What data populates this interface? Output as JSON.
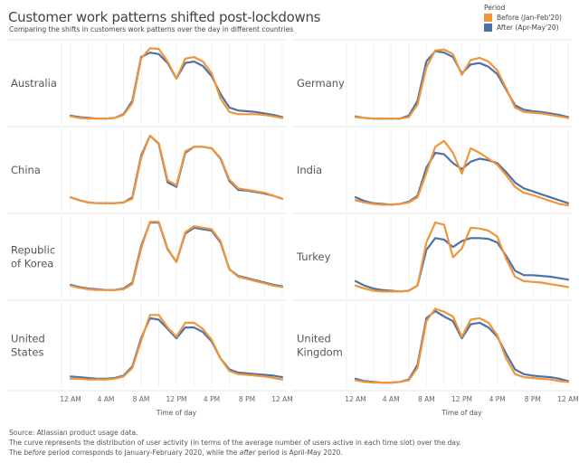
{
  "header": {
    "title": "Customer work patterns shifted post-lockdowns",
    "subtitle": "Comparing the shifts in customers work patterns over the day in different countries"
  },
  "legend": {
    "title": "Period",
    "items": [
      {
        "label": "Before (Jan-Feb'20)",
        "color": "#F0953A"
      },
      {
        "label": "After (Apr-May'20)",
        "color": "#4E72A8"
      }
    ]
  },
  "footer": {
    "source": "Source: Atlassian product usage data.",
    "line2": "The curve represents the distribution of user activity (in terms of the average number of users active in each time slot) over the day.",
    "line3_pre": "The ",
    "line3_before": "before",
    "line3_mid": " period corresponds to January-February 2020, while the ",
    "line3_after": "after",
    "line3_post": " period is April-May 2020."
  },
  "chart_data": {
    "type": "line",
    "title": "Customer work patterns shifted post-lockdowns",
    "subtitle": "Comparing the shifts in customers work patterns over the day in different countries",
    "xlabel": "Time of day",
    "ylabel": "",
    "x_ticks": [
      "12 AM",
      "4 AM",
      "8 AM",
      "12 PM",
      "4 PM",
      "8 PM",
      "12 AM"
    ],
    "x_range_hours": [
      0,
      24
    ],
    "y_range": [
      0,
      1
    ],
    "grid": "vertical",
    "legend_position": "top-right",
    "x": [
      0,
      1,
      2,
      3,
      4,
      5,
      6,
      7,
      8,
      9,
      10,
      11,
      12,
      13,
      14,
      15,
      16,
      17,
      18,
      19,
      20,
      21,
      22,
      23,
      24
    ],
    "panels": [
      {
        "country": "Australia",
        "series": [
          {
            "name": "Before (Jan-Feb'20)",
            "values": [
              0.04,
              0.02,
              0.01,
              0.01,
              0.01,
              0.02,
              0.06,
              0.22,
              0.82,
              0.96,
              0.95,
              0.78,
              0.55,
              0.82,
              0.84,
              0.78,
              0.62,
              0.28,
              0.1,
              0.07,
              0.07,
              0.07,
              0.06,
              0.04,
              0.02
            ]
          },
          {
            "name": "After (Apr-May'20)",
            "values": [
              0.05,
              0.03,
              0.02,
              0.01,
              0.01,
              0.02,
              0.07,
              0.25,
              0.84,
              0.9,
              0.88,
              0.76,
              0.55,
              0.76,
              0.78,
              0.72,
              0.58,
              0.34,
              0.16,
              0.12,
              0.11,
              0.1,
              0.08,
              0.06,
              0.03
            ]
          }
        ]
      },
      {
        "country": "Germany",
        "series": [
          {
            "name": "Before (Jan-Feb'20)",
            "values": [
              0.03,
              0.02,
              0.01,
              0.01,
              0.01,
              0.01,
              0.03,
              0.2,
              0.7,
              0.93,
              0.94,
              0.88,
              0.6,
              0.8,
              0.83,
              0.78,
              0.66,
              0.42,
              0.16,
              0.1,
              0.09,
              0.08,
              0.06,
              0.04,
              0.02
            ]
          },
          {
            "name": "After (Apr-May'20)",
            "values": [
              0.04,
              0.02,
              0.01,
              0.01,
              0.01,
              0.01,
              0.05,
              0.25,
              0.78,
              0.92,
              0.9,
              0.84,
              0.62,
              0.74,
              0.76,
              0.71,
              0.61,
              0.4,
              0.19,
              0.13,
              0.11,
              0.1,
              0.08,
              0.06,
              0.03
            ]
          }
        ]
      },
      {
        "country": "China",
        "series": [
          {
            "name": "Before (Jan-Feb'20)",
            "values": [
              0.12,
              0.08,
              0.05,
              0.04,
              0.04,
              0.04,
              0.05,
              0.1,
              0.65,
              0.95,
              0.85,
              0.35,
              0.28,
              0.74,
              0.8,
              0.8,
              0.78,
              0.65,
              0.36,
              0.24,
              0.22,
              0.2,
              0.18,
              0.14,
              0.1
            ]
          },
          {
            "name": "After (Apr-May'20)",
            "values": [
              0.12,
              0.08,
              0.05,
              0.04,
              0.04,
              0.04,
              0.05,
              0.12,
              0.68,
              0.95,
              0.84,
              0.32,
              0.26,
              0.72,
              0.8,
              0.8,
              0.78,
              0.64,
              0.34,
              0.22,
              0.21,
              0.19,
              0.17,
              0.14,
              0.1
            ]
          }
        ]
      },
      {
        "country": "India",
        "series": [
          {
            "name": "Before (Jan-Feb'20)",
            "values": [
              0.08,
              0.05,
              0.03,
              0.02,
              0.02,
              0.03,
              0.05,
              0.12,
              0.45,
              0.8,
              0.88,
              0.72,
              0.44,
              0.78,
              0.72,
              0.64,
              0.56,
              0.42,
              0.26,
              0.18,
              0.15,
              0.11,
              0.07,
              0.03,
              0.01
            ]
          },
          {
            "name": "After (Apr-May'20)",
            "values": [
              0.12,
              0.07,
              0.04,
              0.03,
              0.02,
              0.03,
              0.06,
              0.14,
              0.52,
              0.72,
              0.7,
              0.58,
              0.5,
              0.6,
              0.64,
              0.62,
              0.58,
              0.46,
              0.32,
              0.24,
              0.2,
              0.16,
              0.12,
              0.08,
              0.04
            ]
          }
        ]
      },
      {
        "country": "Republic of Korea",
        "series": [
          {
            "name": "Before (Jan-Feb'20)",
            "values": [
              0.1,
              0.07,
              0.05,
              0.04,
              0.04,
              0.04,
              0.05,
              0.12,
              0.6,
              0.96,
              0.96,
              0.6,
              0.42,
              0.82,
              0.9,
              0.88,
              0.86,
              0.7,
              0.32,
              0.22,
              0.19,
              0.16,
              0.13,
              0.1,
              0.08
            ]
          },
          {
            "name": "After (Apr-May'20)",
            "values": [
              0.11,
              0.08,
              0.06,
              0.05,
              0.04,
              0.04,
              0.06,
              0.14,
              0.63,
              0.95,
              0.95,
              0.59,
              0.42,
              0.8,
              0.88,
              0.86,
              0.84,
              0.68,
              0.32,
              0.23,
              0.2,
              0.17,
              0.14,
              0.11,
              0.09
            ]
          }
        ]
      },
      {
        "country": "Turkey",
        "series": [
          {
            "name": "Before (Jan-Feb'20)",
            "values": [
              0.1,
              0.06,
              0.03,
              0.02,
              0.02,
              0.02,
              0.03,
              0.1,
              0.68,
              0.95,
              0.92,
              0.48,
              0.6,
              0.88,
              0.87,
              0.84,
              0.76,
              0.46,
              0.22,
              0.16,
              0.15,
              0.14,
              0.12,
              0.1,
              0.08
            ]
          },
          {
            "name": "After (Apr-May'20)",
            "values": [
              0.16,
              0.1,
              0.06,
              0.04,
              0.03,
              0.02,
              0.03,
              0.1,
              0.58,
              0.74,
              0.72,
              0.62,
              0.7,
              0.74,
              0.74,
              0.73,
              0.68,
              0.5,
              0.3,
              0.24,
              0.24,
              0.23,
              0.22,
              0.2,
              0.18
            ]
          }
        ]
      },
      {
        "country": "United States",
        "series": [
          {
            "name": "Before (Jan-Feb'20)",
            "values": [
              0.06,
              0.06,
              0.05,
              0.05,
              0.05,
              0.06,
              0.09,
              0.2,
              0.55,
              0.88,
              0.88,
              0.72,
              0.6,
              0.78,
              0.78,
              0.7,
              0.56,
              0.32,
              0.16,
              0.12,
              0.11,
              0.1,
              0.09,
              0.07,
              0.05
            ]
          },
          {
            "name": "After (Apr-May'20)",
            "values": [
              0.09,
              0.08,
              0.07,
              0.06,
              0.06,
              0.07,
              0.1,
              0.22,
              0.58,
              0.84,
              0.82,
              0.7,
              0.58,
              0.72,
              0.72,
              0.66,
              0.54,
              0.32,
              0.18,
              0.14,
              0.13,
              0.12,
              0.11,
              0.1,
              0.08
            ]
          }
        ]
      },
      {
        "country": "United Kingdom",
        "series": [
          {
            "name": "Before (Jan-Feb'20)",
            "values": [
              0.04,
              0.02,
              0.01,
              0.01,
              0.01,
              0.02,
              0.04,
              0.2,
              0.8,
              0.96,
              0.92,
              0.86,
              0.6,
              0.82,
              0.84,
              0.78,
              0.62,
              0.32,
              0.12,
              0.08,
              0.07,
              0.06,
              0.05,
              0.03,
              0.02
            ]
          },
          {
            "name": "After (Apr-May'20)",
            "values": [
              0.06,
              0.03,
              0.02,
              0.01,
              0.01,
              0.02,
              0.05,
              0.24,
              0.84,
              0.93,
              0.86,
              0.8,
              0.58,
              0.76,
              0.78,
              0.72,
              0.6,
              0.38,
              0.18,
              0.12,
              0.1,
              0.09,
              0.08,
              0.06,
              0.03
            ]
          }
        ]
      }
    ]
  }
}
